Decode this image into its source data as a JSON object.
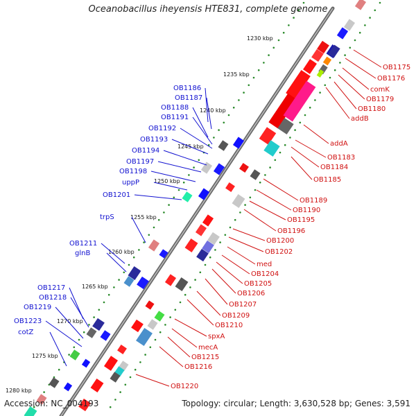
{
  "title": "Oceanobacillus iheyensis HTE831, complete genome",
  "footer": {
    "accession": "Accession: NC_004193",
    "summary": "Topology: circular; Length: 3,630,528 bp; Genes: 3,591"
  },
  "colors": {
    "backbone": "#888888",
    "tick_dots": "#2a8a2a",
    "left_labels": "#1010d0",
    "right_labels": "#d01010"
  },
  "kbp_ticks": [
    "1230 kbp",
    "1235 kbp",
    "1240 kbp",
    "1245 kbp",
    "1250 kbp",
    "1255 kbp",
    "1260 kbp",
    "1265 kbp",
    "1270 kbp",
    "1275 kbp",
    "1280 kbp"
  ],
  "left_labels": [
    "OB1186",
    "OB1187",
    "OB1188",
    "OB1191",
    "OB1192",
    "OB1193",
    "OB1194",
    "OB1197",
    "OB1198",
    "uppP",
    "OB1201",
    "trpS",
    "OB1211",
    "glnB",
    "OB1217",
    "OB1218",
    "OB1219",
    "OB1223",
    "cotZ"
  ],
  "right_labels": [
    "OB1175",
    "OB1176",
    "comK",
    "OB1179",
    "OB1180",
    "addB",
    "addA",
    "OB1183",
    "OB1184",
    "OB1185",
    "OB1189",
    "OB1190",
    "OB1195",
    "OB1196",
    "OB1200",
    "OB1202",
    "med",
    "OB1204",
    "OB1205",
    "OB1206",
    "OB1207",
    "OB1209",
    "OB1210",
    "spxA",
    "mecA",
    "OB1215",
    "OB1216",
    "OB1220"
  ]
}
